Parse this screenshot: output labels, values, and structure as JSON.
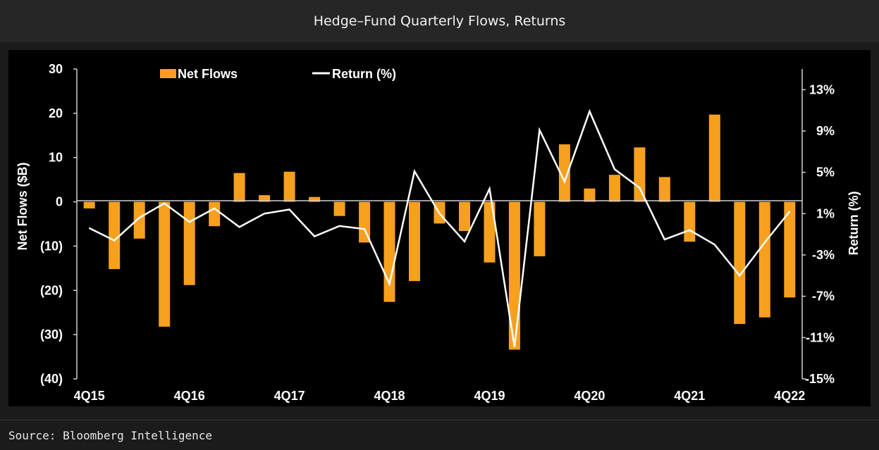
{
  "header": {
    "title": "Hedge–Fund Quarterly Flows, Returns"
  },
  "footer": {
    "source": "Source: Bloomberg Intelligence"
  },
  "colors": {
    "bars": "#f7a01e",
    "line": "#ffffff",
    "panel": "#000000",
    "text": "#ffffff"
  },
  "chart_data": {
    "type": "bar+line",
    "title": "Hedge–Fund Quarterly Flows, Returns",
    "ylabel_left": "Net Flows ($B)",
    "ylabel_right": "Return (%)",
    "ylim_left": [
      -40,
      30
    ],
    "ylim_right": [
      -15,
      15
    ],
    "yticks_left": [
      30,
      20,
      10,
      0,
      -10,
      -20,
      -30,
      -40
    ],
    "yticks_left_labels": [
      "30",
      "20",
      "10",
      "0",
      "(10)",
      "(20)",
      "(30)",
      "(40)"
    ],
    "yticks_right": [
      13,
      9,
      5,
      1,
      -3,
      -7,
      -11,
      -15
    ],
    "yticks_right_labels": [
      "13%",
      "9%",
      "5%",
      "1%",
      "-3%",
      "-7%",
      "-11%",
      "-15%"
    ],
    "xtick_labels": [
      "4Q15",
      "4Q16",
      "4Q17",
      "4Q18",
      "4Q19",
      "4Q20",
      "4Q21",
      "4Q22"
    ],
    "xtick_indices": [
      0,
      4,
      8,
      12,
      16,
      20,
      24,
      28
    ],
    "legend": [
      "Net Flows",
      "Return (%)"
    ],
    "legend_position": "top-left",
    "categories": [
      "4Q15",
      "1Q16",
      "2Q16",
      "3Q16",
      "4Q16",
      "1Q17",
      "2Q17",
      "3Q17",
      "4Q17",
      "1Q18",
      "2Q18",
      "3Q18",
      "4Q18",
      "1Q19",
      "2Q19",
      "3Q19",
      "4Q19",
      "1Q20",
      "2Q20",
      "3Q20",
      "4Q20",
      "1Q21",
      "2Q21",
      "3Q21",
      "4Q21",
      "1Q22",
      "2Q22",
      "3Q22",
      "4Q22"
    ],
    "series": [
      {
        "name": "Net Flows",
        "type": "bar",
        "axis": "left",
        "values": [
          -1.5,
          -15.2,
          -8.3,
          -28.2,
          -18.8,
          -5.5,
          6.5,
          1.5,
          6.8,
          1.1,
          -3.2,
          -9.2,
          -22.6,
          -17.9,
          -4.9,
          -6.6,
          -13.7,
          -33.4,
          -12.3,
          13.0,
          3.0,
          6.1,
          12.3,
          5.6,
          -9.0,
          19.7,
          -27.6,
          -26.1,
          -21.6
        ]
      },
      {
        "name": "Return (%)",
        "type": "line",
        "axis": "right",
        "values": [
          -0.4,
          -1.6,
          0.6,
          2.0,
          0.2,
          1.5,
          -0.3,
          1.0,
          1.4,
          -1.2,
          -0.2,
          -0.5,
          -5.8,
          5.1,
          1.0,
          -1.7,
          3.4,
          -11.9,
          9.1,
          4.1,
          10.9,
          5.3,
          3.5,
          -1.5,
          -0.6,
          -2.0,
          -5.0,
          -1.8,
          1.2
        ]
      }
    ]
  }
}
